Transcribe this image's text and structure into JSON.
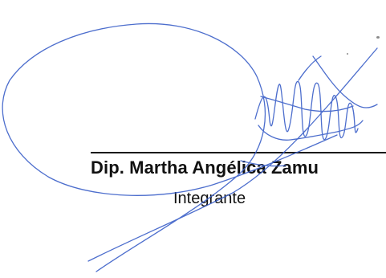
{
  "signature_block": {
    "name": "Dip. Martha Angélica Zamu",
    "role": "Integrante"
  },
  "colors": {
    "ink": "#3a5fc8",
    "text": "#111111",
    "rule": "#1a1a1a"
  }
}
